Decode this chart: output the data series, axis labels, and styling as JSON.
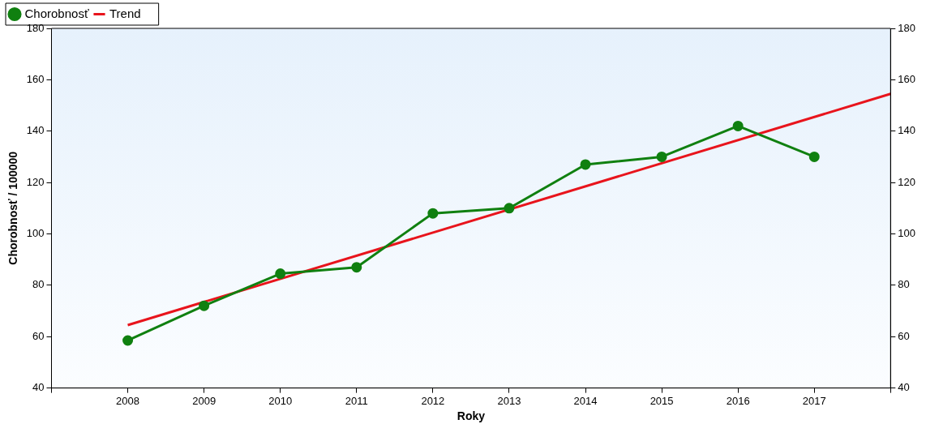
{
  "chart_data": {
    "type": "line",
    "xlabel": "Roky",
    "ylabel": "Chorobnosť / 100000",
    "x": [
      2008,
      2009,
      2010,
      2011,
      2012,
      2013,
      2014,
      2015,
      2016,
      2017
    ],
    "series": [
      {
        "name": "Chorobnosť",
        "color": "#108010",
        "marker": "circle",
        "values": [
          58.5,
          72,
          84.5,
          87,
          108,
          110,
          127,
          130,
          142,
          130
        ]
      },
      {
        "name": "Trend",
        "color": "#e8141c",
        "marker": "none",
        "x": [
          2008,
          2018
        ],
        "values": [
          64.5,
          154.5
        ]
      }
    ],
    "xlim": [
      2007,
      2018
    ],
    "xticks": [
      {
        "value": 2007,
        "label": null
      },
      2008,
      2009,
      2010,
      2011,
      2012,
      2013,
      2014,
      2015,
      2016,
      2017,
      {
        "value": 2018,
        "label": null
      }
    ],
    "ylim": [
      40,
      180
    ],
    "yticks": [
      40,
      60,
      80,
      100,
      120,
      140,
      160,
      180
    ],
    "y2lim": [
      40,
      180
    ],
    "y2ticks": [
      40,
      60,
      80,
      100,
      120,
      140,
      160,
      180
    ],
    "legend": "top left",
    "grid": false
  }
}
